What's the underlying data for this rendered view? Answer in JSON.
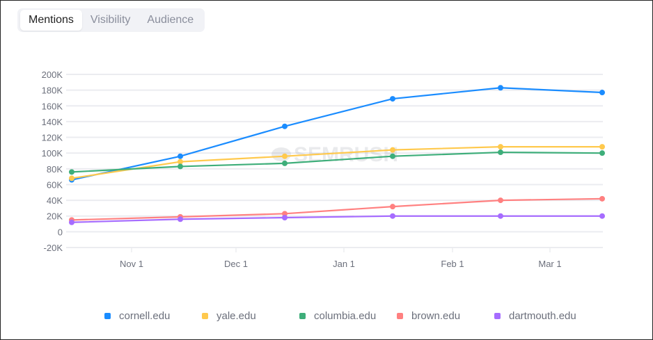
{
  "tabs": [
    {
      "label": "Mentions",
      "active": true
    },
    {
      "label": "Visibility",
      "active": false
    },
    {
      "label": "Audience",
      "active": false
    }
  ],
  "watermark": "SEMRUSH",
  "chart_data": {
    "type": "line",
    "x": [
      "Oct 15",
      "Nov 15",
      "Dec 15",
      "Jan 15",
      "Feb 15",
      "Mar 15"
    ],
    "x_ticks": [
      "Nov 1",
      "Dec 1",
      "Jan 1",
      "Feb 1",
      "Mar 1"
    ],
    "y_ticks": [
      "200K",
      "180K",
      "160K",
      "140K",
      "120K",
      "100K",
      "80K",
      "60K",
      "40K",
      "20K",
      "0",
      "-20K"
    ],
    "ylim": [
      -20000,
      200000
    ],
    "grid": true,
    "legend_position": "bottom",
    "series": [
      {
        "name": "cornell.edu",
        "color": "#1a8cff",
        "values": [
          66000,
          96000,
          134000,
          169000,
          183000,
          177000
        ]
      },
      {
        "name": "yale.edu",
        "color": "#ffc94d",
        "values": [
          68000,
          89000,
          96000,
          104000,
          108000,
          108000
        ]
      },
      {
        "name": "columbia.edu",
        "color": "#3eae7a",
        "values": [
          76000,
          83000,
          87000,
          96000,
          101000,
          100000
        ]
      },
      {
        "name": "brown.edu",
        "color": "#ff8080",
        "values": [
          15000,
          19000,
          23000,
          32000,
          40000,
          42000
        ]
      },
      {
        "name": "dartmouth.edu",
        "color": "#a66cff",
        "values": [
          12000,
          16000,
          18000,
          20000,
          20000,
          20000
        ]
      }
    ]
  }
}
